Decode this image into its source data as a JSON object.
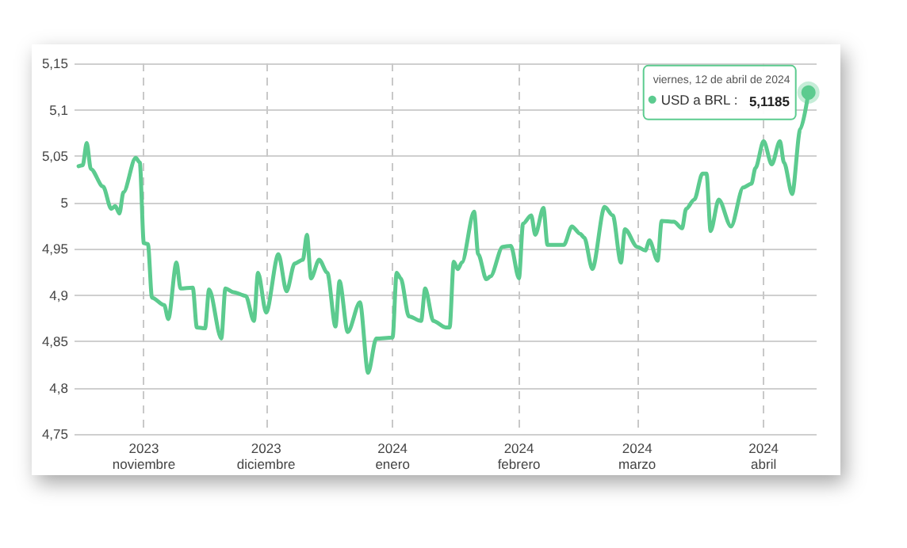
{
  "chart_data": {
    "type": "line",
    "x": [
      "2023-10-16",
      "2023-10-17",
      "2023-10-18",
      "2023-10-19",
      "2023-10-22",
      "2023-10-24",
      "2023-10-25",
      "2023-10-26",
      "2023-10-27",
      "2023-10-30",
      "2023-10-31",
      "2023-11-01",
      "2023-11-02",
      "2023-11-03",
      "2023-11-06",
      "2023-11-07",
      "2023-11-09",
      "2023-11-10",
      "2023-11-13",
      "2023-11-14",
      "2023-11-16",
      "2023-11-17",
      "2023-11-20",
      "2023-11-21",
      "2023-11-23",
      "2023-11-26",
      "2023-11-28",
      "2023-11-29",
      "2023-12-01",
      "2023-12-04",
      "2023-12-06",
      "2023-12-08",
      "2023-12-10",
      "2023-12-11",
      "2023-12-12",
      "2023-12-14",
      "2023-12-16",
      "2023-12-18",
      "2023-12-19",
      "2023-12-21",
      "2023-12-24",
      "2023-12-26",
      "2023-12-28",
      "2024-01-01",
      "2024-01-02",
      "2024-01-03",
      "2024-01-05",
      "2024-01-08",
      "2024-01-09",
      "2024-01-11",
      "2024-01-14",
      "2024-01-15",
      "2024-01-16",
      "2024-01-17",
      "2024-01-18",
      "2024-01-21",
      "2024-01-22",
      "2024-01-24",
      "2024-01-25",
      "2024-01-28",
      "2024-01-30",
      "2024-02-01",
      "2024-02-02",
      "2024-02-04",
      "2024-02-05",
      "2024-02-07",
      "2024-02-08",
      "2024-02-12",
      "2024-02-14",
      "2024-02-16",
      "2024-02-17",
      "2024-02-19",
      "2024-02-22",
      "2024-02-24",
      "2024-02-26",
      "2024-02-27",
      "2024-03-01",
      "2024-03-03",
      "2024-03-04",
      "2024-03-06",
      "2024-03-07",
      "2024-03-10",
      "2024-03-12",
      "2024-03-13",
      "2024-03-15",
      "2024-03-17",
      "2024-03-18",
      "2024-03-19",
      "2024-03-21",
      "2024-03-24",
      "2024-03-27",
      "2024-03-29",
      "2024-03-30",
      "2024-04-01",
      "2024-04-03",
      "2024-04-05",
      "2024-04-06",
      "2024-04-08",
      "2024-04-10",
      "2024-04-12"
    ],
    "legend": "top right",
    "series": [
      {
        "name": "USD a BRL :",
        "color": "#5ccb8f",
        "values": [
          5.039,
          5.04,
          5.064,
          5.036,
          5.017,
          4.993,
          4.996,
          4.988,
          5.011,
          5.048,
          5.043,
          4.956,
          4.955,
          4.897,
          4.889,
          4.874,
          4.935,
          4.907,
          4.908,
          4.865,
          4.864,
          4.906,
          4.853,
          4.907,
          4.903,
          4.899,
          4.872,
          4.924,
          4.881,
          4.944,
          4.904,
          4.934,
          4.938,
          4.965,
          4.918,
          4.938,
          4.924,
          4.866,
          4.915,
          4.86,
          4.892,
          4.816,
          4.853,
          4.854,
          4.924,
          4.918,
          4.877,
          4.872,
          4.907,
          4.872,
          4.865,
          4.865,
          4.936,
          4.928,
          4.935,
          4.99,
          4.944,
          4.917,
          4.92,
          4.952,
          4.953,
          4.918,
          4.977,
          4.986,
          4.965,
          4.994,
          4.954,
          4.954,
          4.974,
          4.966,
          4.962,
          4.928,
          4.995,
          4.986,
          4.935,
          4.971,
          4.952,
          4.948,
          4.959,
          4.937,
          4.98,
          4.979,
          4.972,
          4.993,
          5.003,
          5.031,
          5.031,
          4.969,
          5.003,
          4.974,
          5.016,
          5.02,
          5.037,
          5.066,
          5.041,
          5.066,
          5.043,
          5.009,
          5.079,
          5.1185
        ],
        "value_labels": [
          null,
          null,
          null,
          null,
          null,
          null,
          null,
          null,
          null,
          null,
          null,
          null,
          null,
          null,
          null,
          null,
          null,
          null,
          null,
          null,
          null,
          null,
          null,
          null,
          null,
          null,
          null,
          null,
          null,
          null,
          null,
          null,
          null,
          null,
          null,
          null,
          null,
          null,
          null,
          null,
          null,
          null,
          null,
          null,
          null,
          null,
          null,
          null,
          null,
          null,
          null,
          null,
          null,
          null,
          null,
          null,
          null,
          null,
          null,
          null,
          null,
          null,
          null,
          null,
          null,
          null,
          null,
          null,
          null,
          null,
          null,
          null,
          null,
          null,
          null,
          null,
          null,
          null,
          null,
          null,
          null,
          null,
          null,
          null,
          null,
          null,
          null,
          null,
          null,
          null,
          null,
          null,
          null,
          null,
          null,
          null,
          null,
          null,
          null,
          "5,1185"
        ]
      }
    ],
    "annotations": [
      {
        "text": "viernes, 12 de abril de 2024",
        "x": "2024-04-12",
        "y": 5.1185
      }
    ],
    "xlim": [
      "2023-10-15",
      "2024-04-14"
    ],
    "xticks": [
      {
        "value": "2023-11-01",
        "label": "2023\nnoviembre"
      },
      {
        "value": "2023-12-01",
        "label": "2023\ndiciembre"
      },
      {
        "value": "2024-01-01",
        "label": "2024\nenero"
      },
      {
        "value": "2024-02-01",
        "label": "2024\nfebrero"
      },
      {
        "value": "2024-03-01",
        "label": "2024\nmarzo"
      },
      {
        "value": "2024-04-01",
        "label": "2024\nabril"
      }
    ],
    "ylim": [
      4.75,
      5.15
    ],
    "yticks": [
      {
        "value": 4.75,
        "label": "4,75"
      },
      {
        "value": 4.8,
        "label": "4,8"
      },
      {
        "value": 4.85,
        "label": "4,85"
      },
      {
        "value": 4.9,
        "label": "4,9"
      },
      {
        "value": 4.95,
        "label": "4,95"
      },
      {
        "value": 5,
        "label": "5"
      },
      {
        "value": 5.05,
        "label": "5,05"
      },
      {
        "value": 5.1,
        "label": "5,1"
      },
      {
        "value": 5.15,
        "label": "5,15"
      }
    ],
    "grid": true
  }
}
